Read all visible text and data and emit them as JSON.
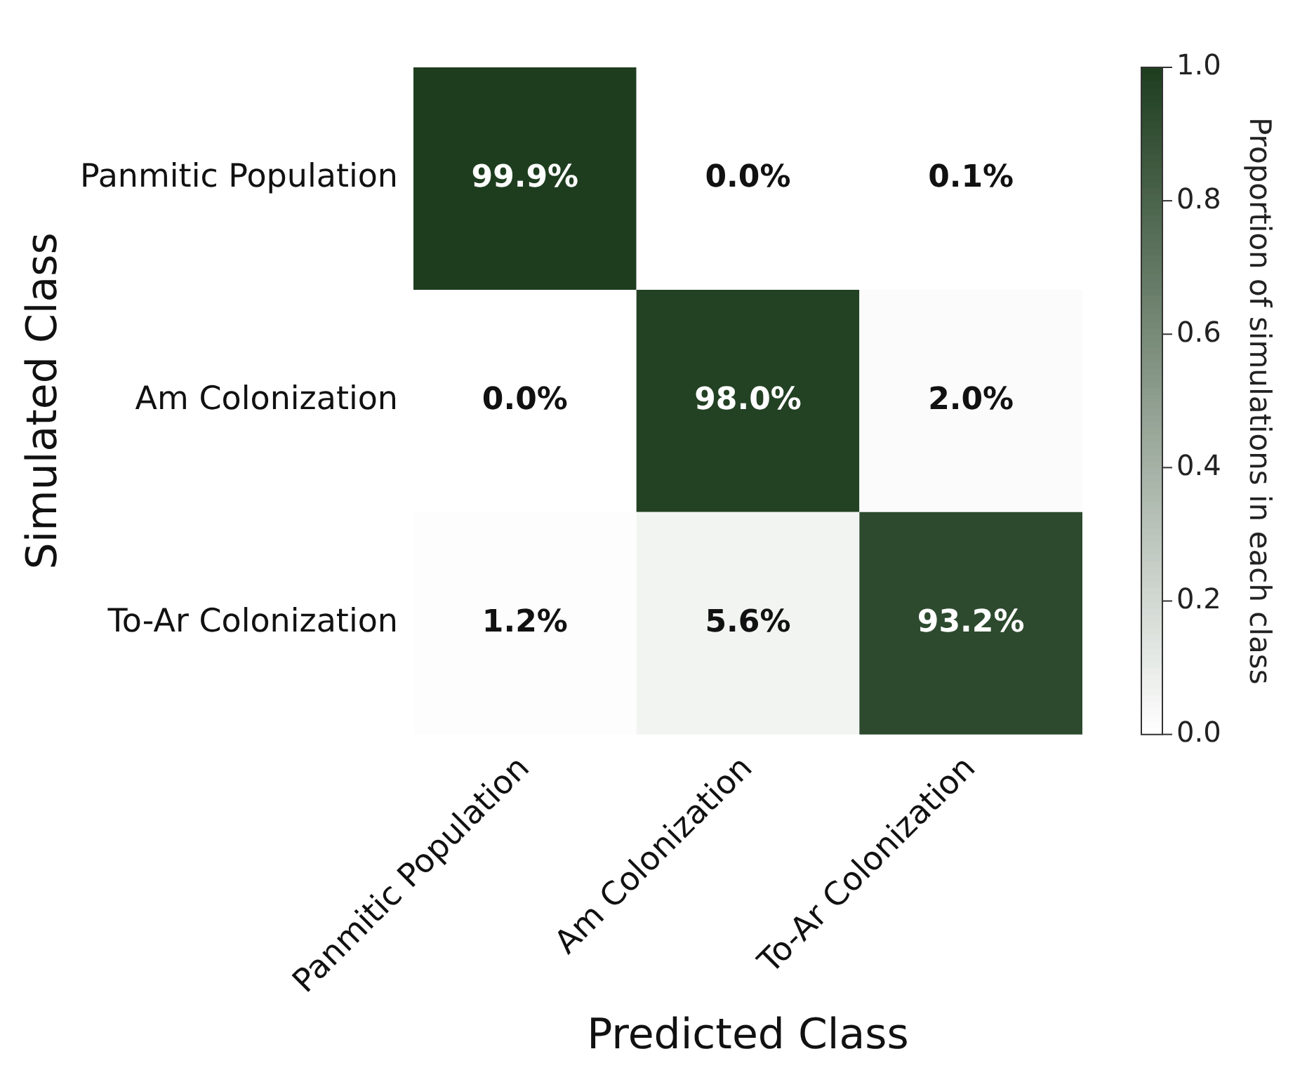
{
  "chart_data": {
    "type": "heatmap",
    "xlabel": "Predicted Class",
    "ylabel": "Simulated Class",
    "clabel": "Proportion of simulations in each class",
    "categories": [
      "Panmitic Population",
      "Am Colonization",
      "To-Ar Colonization"
    ],
    "y_categories": [
      "Panmitic Population",
      "Am Colonization",
      "To-Ar Colonization"
    ],
    "cells": [
      [
        0.999,
        0.0,
        0.001
      ],
      [
        0.0,
        0.98,
        0.02
      ],
      [
        0.012,
        0.056,
        0.932
      ]
    ],
    "cell_labels": [
      [
        "99.9%",
        "0.0%",
        "0.1%"
      ],
      [
        "0.0%",
        "98.0%",
        "2.0%"
      ],
      [
        "1.2%",
        "5.6%",
        "93.2%"
      ]
    ],
    "color": "#1e3d1f",
    "clim": [
      0,
      1
    ],
    "cticks": [
      {
        "value": 0,
        "label": "0.0"
      },
      {
        "value": 0.2,
        "label": "0.2"
      },
      {
        "value": 0.4,
        "label": "0.4"
      },
      {
        "value": 0.6,
        "label": "0.6"
      },
      {
        "value": 0.8,
        "label": "0.8"
      },
      {
        "value": 1,
        "label": "1.0"
      }
    ]
  }
}
